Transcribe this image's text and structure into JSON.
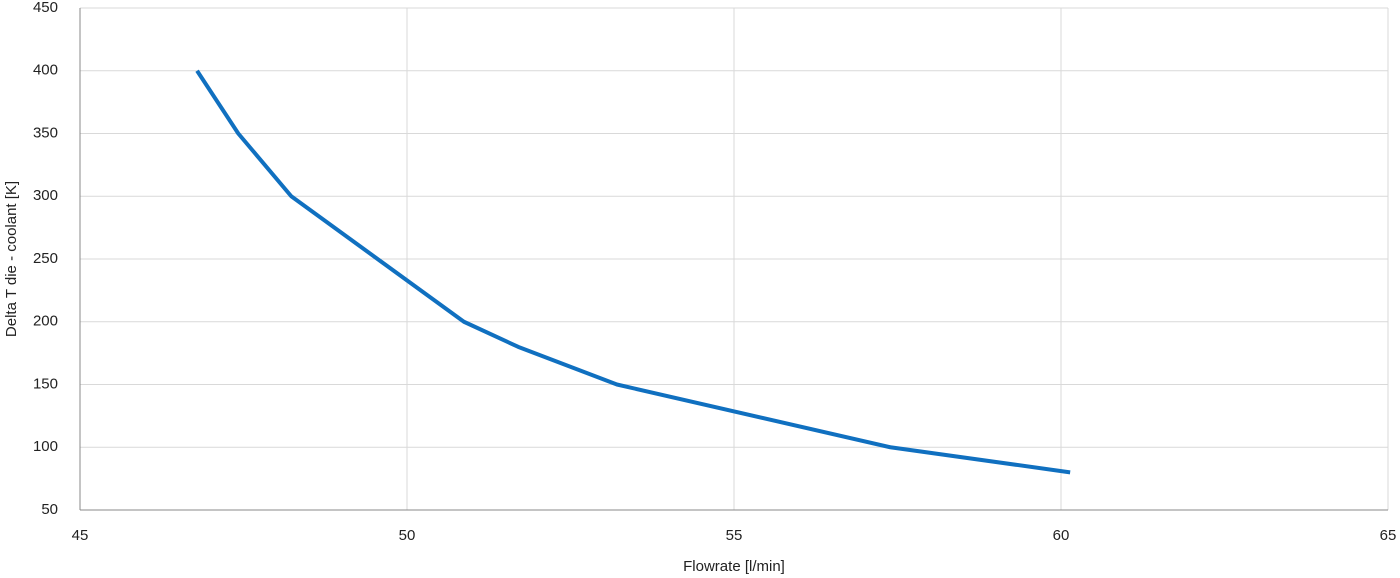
{
  "chart_data": {
    "type": "line",
    "x_label": "Flowrate [l/min]",
    "y_label": "Delta T  die - coolant [K]",
    "series": [
      {
        "name": "Delta T",
        "color": "#1070c0",
        "x": [
          46.79,
          47.42,
          48.23,
          50.87,
          51.7,
          53.21,
          57.39,
          60.14
        ],
        "values": [
          400,
          350,
          300,
          200,
          180,
          150,
          100,
          80
        ]
      }
    ],
    "xlim": [
      45,
      65
    ],
    "xticks": [
      45,
      50,
      55,
      60,
      65
    ],
    "ylim": [
      50,
      450
    ],
    "yticks": [
      50,
      100,
      150,
      200,
      250,
      300,
      350,
      400,
      450
    ],
    "grid": true
  }
}
